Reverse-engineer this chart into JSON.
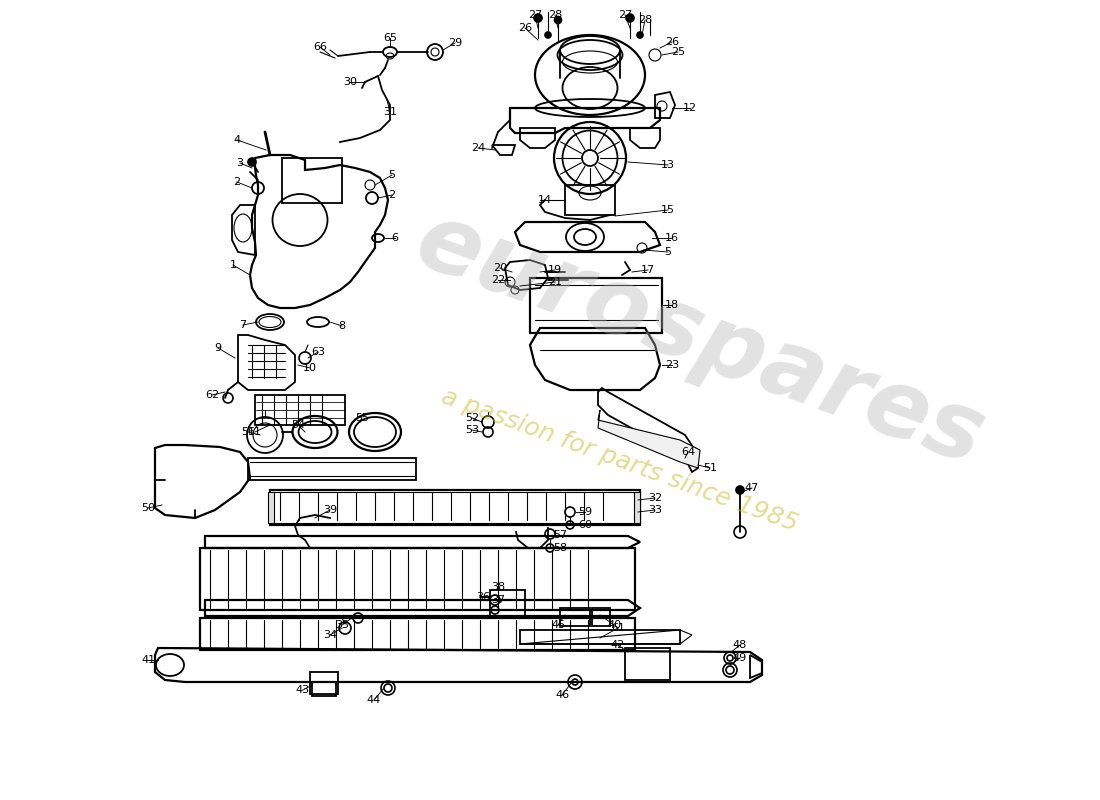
{
  "background_color": "#ffffff",
  "watermark_text": "eurospares",
  "watermark_subtext": "a passion for parts since 1985",
  "fig_w": 11.0,
  "fig_h": 8.0,
  "dpi": 100,
  "xlim": [
    0,
    1100
  ],
  "ylim": [
    0,
    800
  ]
}
